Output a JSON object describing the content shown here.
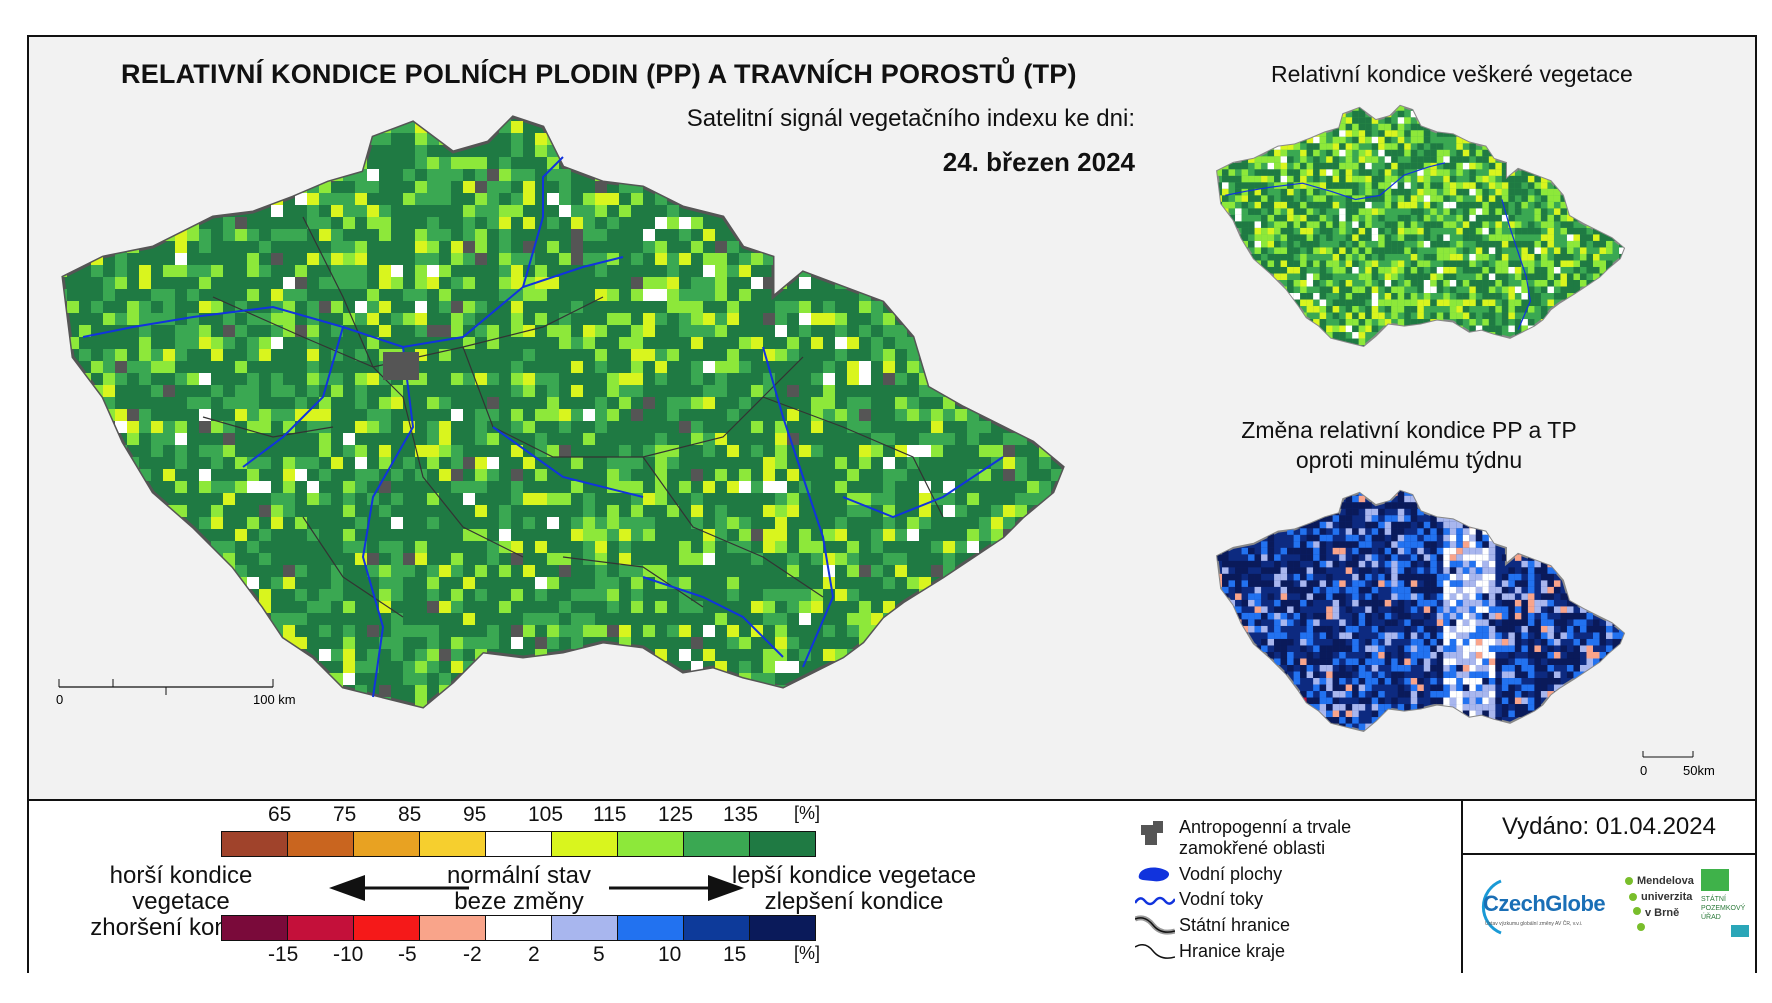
{
  "title": "RELATIVNÍ KONDICE POLNÍCH PLODIN (PP) A TRAVNÍCH POROSTŮ (TP)",
  "subtitle": "Satelitní signál vegetačního indexu ke dni:",
  "date": "24. březen 2024",
  "inset_top_title": "Relativní kondice veškeré vegetace",
  "inset_bottom_title_1": "Změna relativní kondice PP a TP",
  "inset_bottom_title_2": "oproti minulému týdnu",
  "scale_main": {
    "zero": "0",
    "end": "100 km"
  },
  "scale_inset": {
    "zero": "0",
    "end": "50km"
  },
  "legend_condition": {
    "labels": [
      "65",
      "75",
      "85",
      "95",
      "105",
      "115",
      "125",
      "135",
      "[%]"
    ],
    "colors": [
      "#a0432b",
      "#c9651f",
      "#e8a222",
      "#f6cf2e",
      "#ffffff",
      "#d9f51e",
      "#8de83a",
      "#3aa852",
      "#1f7a43"
    ]
  },
  "legend_change": {
    "labels": [
      "-15",
      "-10",
      "-5",
      "-2",
      "2",
      "5",
      "10",
      "15",
      "[%]"
    ],
    "colors": [
      "#7a0a3a",
      "#c4103a",
      "#f51919",
      "#f9a48a",
      "#ffffff",
      "#a8b6ee",
      "#2272f0",
      "#0d3a9a",
      "#0a1a5a"
    ]
  },
  "arrows": {
    "left_1": "horší kondice vegetace",
    "left_2": "zhoršení kondice",
    "center_1": "normální stav",
    "center_2": "beze změny",
    "right_1": "lepší kondice vegetace",
    "right_2": "zlepšení kondice"
  },
  "map_legend": [
    "Antropogenní a trvale zamokřené oblasti",
    "Vodní plochy",
    "Vodní toky",
    "Státní hranice",
    "Hranice kraje"
  ],
  "issued": "Vydáno: 01.04.2024",
  "logos": {
    "czechglobe": "CzechGlobe",
    "czechglobe_sub": "Ústav výzkumu globální změny AV ČR, v.v.i.",
    "mendel_1": "Mendelova",
    "mendel_2": "univerzita",
    "mendel_3": "v Brně",
    "spu_1": "STÁTNÍ",
    "spu_2": "POZEMKOVÝ",
    "spu_3": "ÚŘAD"
  },
  "colors": {
    "main_dark_green": "#1f7a43",
    "river_blue": "#1133dd",
    "change_dark_blue": "#0d2a80"
  }
}
